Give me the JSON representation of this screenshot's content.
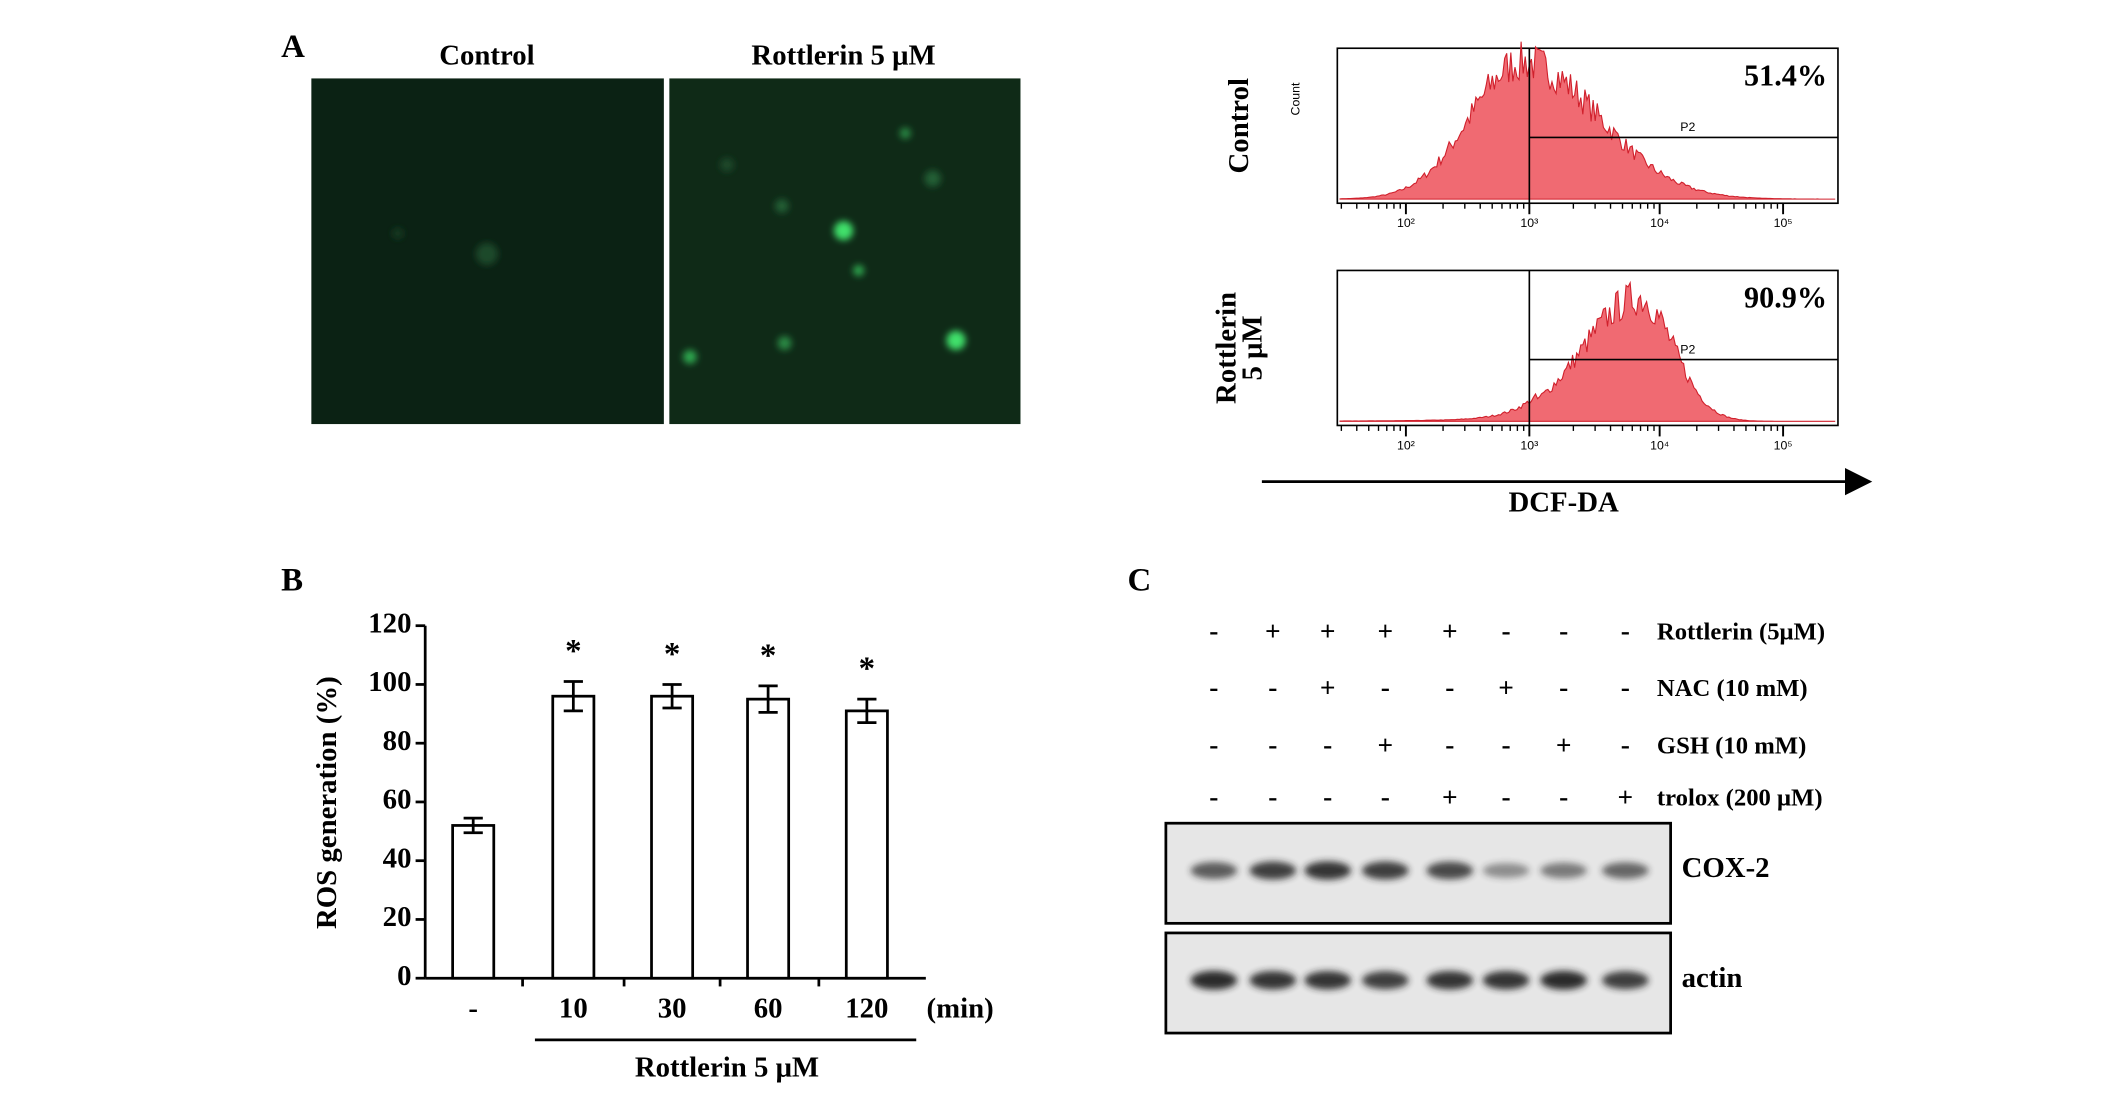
{
  "panel_a": {
    "label": "A",
    "image_titles": [
      "Control",
      "Rottlerin 5 μM"
    ],
    "flow": {
      "y_label": "Count",
      "gate": "P2",
      "x_ticks": [
        "10²",
        "10³",
        "10⁴",
        "10⁵"
      ],
      "x_label": "DCF-DA",
      "panels": [
        {
          "label_lines": [
            "Control"
          ],
          "percent": "51.4%"
        },
        {
          "label_lines": [
            "Rottlerin",
            "5 μM"
          ],
          "percent": "90.9%"
        }
      ]
    }
  },
  "chart_data": {
    "type": "bar",
    "panel_label": "B",
    "ylabel": "ROS generation (%)",
    "categories": [
      "-",
      "10",
      "30",
      "60",
      "120"
    ],
    "x_unit": "(min)",
    "group_label": "Rottlerin 5 μM",
    "values": [
      52,
      96,
      96,
      95,
      91
    ],
    "errors": [
      2.5,
      5,
      4,
      4.5,
      4
    ],
    "significance": [
      null,
      "*",
      "*",
      "*",
      "*"
    ],
    "ylim": [
      0,
      120
    ],
    "yticks": [
      0,
      20,
      40,
      60,
      80,
      100,
      120
    ],
    "color": "#ffffff"
  },
  "panel_c": {
    "label": "C",
    "treatments": [
      {
        "name": "Rottlerin (5μM)",
        "signs": [
          "-",
          "+",
          "+",
          "+",
          "+",
          "-",
          "-",
          "-"
        ]
      },
      {
        "name": "NAC (10 mM)",
        "signs": [
          "-",
          "-",
          "+",
          "-",
          "-",
          "+",
          "-",
          "-"
        ]
      },
      {
        "name": "GSH (10 mM)",
        "signs": [
          "-",
          "-",
          "-",
          "+",
          "-",
          "-",
          "+",
          "-"
        ]
      },
      {
        "name": "trolox (200 μM)",
        "signs": [
          "-",
          "-",
          "-",
          "-",
          "+",
          "-",
          "-",
          "+"
        ]
      }
    ],
    "blots": [
      "COX-2",
      "actin"
    ]
  }
}
